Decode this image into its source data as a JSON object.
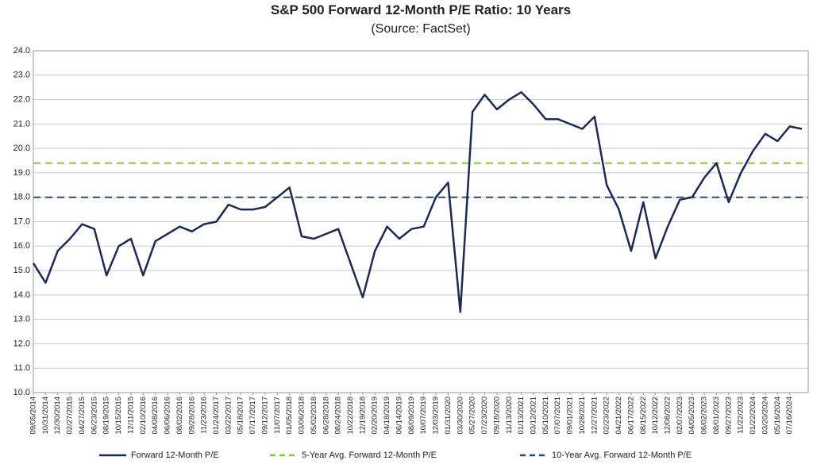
{
  "chart_data": {
    "type": "line",
    "title": "S&P 500 Forward 12-Month P/E Ratio: 10 Years",
    "subtitle": "(Source: FactSet)",
    "categories": [
      "09/05/2014",
      "10/31/2014",
      "12/30/2014",
      "02/27/2015",
      "04/27/2015",
      "06/23/2015",
      "08/19/2015",
      "10/15/2015",
      "12/11/2015",
      "02/10/2016",
      "04/08/2016",
      "06/06/2016",
      "08/02/2016",
      "09/28/2016",
      "11/23/2016",
      "01/24/2017",
      "03/22/2017",
      "05/18/2017",
      "07/17/2017",
      "09/12/2017",
      "11/07/2017",
      "01/05/2018",
      "03/06/2018",
      "05/02/2018",
      "06/28/2018",
      "08/24/2018",
      "10/22/2018",
      "12/19/2018",
      "02/20/2019",
      "04/18/2019",
      "06/14/2019",
      "08/09/2019",
      "10/07/2019",
      "12/03/2019",
      "01/31/2020",
      "03/30/2020",
      "05/27/2020",
      "07/23/2020",
      "09/18/2020",
      "11/13/2020",
      "01/13/2021",
      "03/12/2021",
      "05/10/2021",
      "07/07/2021",
      "09/01/2021",
      "10/28/2021",
      "12/27/2021",
      "02/23/2022",
      "04/21/2022",
      "06/17/2022",
      "08/15/2022",
      "10/12/2022",
      "12/08/2022",
      "02/07/2023",
      "04/05/2023",
      "06/02/2023",
      "08/01/2023",
      "09/27/2023",
      "11/22/2023",
      "01/22/2024",
      "03/20/2024",
      "05/16/2024",
      "07/16/2024",
      null
    ],
    "series": [
      {
        "name": "Forward 12-Month P/E",
        "color": "#1c2a57",
        "values": [
          15.3,
          14.5,
          15.8,
          16.3,
          16.9,
          16.7,
          14.8,
          16.0,
          16.3,
          14.8,
          16.2,
          16.5,
          16.8,
          16.6,
          16.9,
          17.0,
          17.7,
          17.5,
          17.5,
          17.6,
          18.0,
          18.4,
          16.4,
          16.3,
          16.5,
          16.7,
          15.3,
          13.9,
          15.8,
          16.8,
          16.3,
          16.7,
          16.8,
          18.0,
          18.6,
          13.3,
          21.5,
          22.2,
          21.6,
          22.0,
          22.3,
          21.8,
          21.2,
          21.2,
          21.0,
          20.8,
          21.3,
          18.5,
          17.5,
          15.8,
          17.8,
          15.5,
          16.8,
          17.9,
          18.0,
          18.8,
          19.4,
          17.8,
          19.0,
          19.9,
          20.6,
          20.3,
          20.9,
          20.8
        ]
      }
    ],
    "reference_lines": [
      {
        "name": "5-Year Avg. Forward 12-Month P/E",
        "color": "#8cc63f",
        "value": 19.4
      },
      {
        "name": "10-Year Avg. Forward 12-Month P/E",
        "color": "#2c4a7c",
        "value": 18.0
      }
    ],
    "ylim": [
      10,
      24
    ],
    "yticks": [
      {
        "value": 10,
        "label": "10.0"
      },
      {
        "value": 11,
        "label": "11.0"
      },
      {
        "value": 12,
        "label": "12.0"
      },
      {
        "value": 13,
        "label": "13.0"
      },
      {
        "value": 14,
        "label": "14.0"
      },
      {
        "value": 15,
        "label": "15.0"
      },
      {
        "value": 16,
        "label": "16.0"
      },
      {
        "value": 17,
        "label": "17.0"
      },
      {
        "value": 18,
        "label": "18.0"
      },
      {
        "value": 19,
        "label": "19.0"
      },
      {
        "value": 20,
        "label": "20.0"
      },
      {
        "value": 21,
        "label": "21.0"
      },
      {
        "value": 22,
        "label": "22.0"
      },
      {
        "value": 23,
        "label": "23.0"
      },
      {
        "value": 24,
        "label": "24.0"
      }
    ],
    "grid": true
  }
}
